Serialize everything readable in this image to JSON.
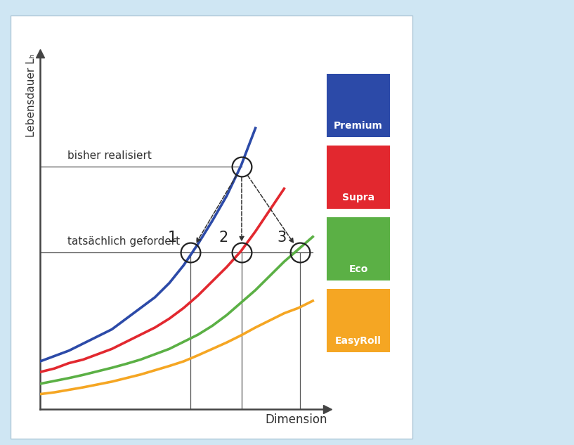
{
  "chart_data": {
    "type": "line",
    "x_label": "Dimension",
    "y_label": "Lebensdauer Lₕ",
    "x": [
      0,
      0.5,
      1,
      1.5,
      2,
      2.5,
      3,
      3.5,
      4,
      4.5,
      5,
      5.5,
      6,
      6.5,
      7,
      7.5,
      8,
      8.5,
      9,
      9.5,
      10
    ],
    "series": [
      {
        "name": "Premium",
        "color": "#2c4aa8",
        "values": [
          1.35,
          1.5,
          1.65,
          1.85,
          2.05,
          2.25,
          2.55,
          2.85,
          3.15,
          3.55,
          4.05,
          4.65,
          5.3,
          6.0,
          6.85,
          7.9,
          null,
          null,
          null,
          null,
          null
        ]
      },
      {
        "name": "Supra",
        "color": "#e2282f",
        "values": [
          1.05,
          1.15,
          1.3,
          1.4,
          1.55,
          1.7,
          1.9,
          2.1,
          2.3,
          2.55,
          2.85,
          3.2,
          3.6,
          4.0,
          4.45,
          5.0,
          5.6,
          6.2,
          null,
          null,
          null
        ]
      },
      {
        "name": "Eco",
        "color": "#5bb045",
        "values": [
          0.72,
          0.8,
          0.88,
          0.97,
          1.07,
          1.17,
          1.28,
          1.4,
          1.55,
          1.7,
          1.9,
          2.1,
          2.35,
          2.65,
          3.0,
          3.35,
          3.75,
          4.15,
          4.5,
          4.85,
          null
        ]
      },
      {
        "name": "EasyRoll",
        "color": "#f5a623",
        "values": [
          0.43,
          0.48,
          0.55,
          0.62,
          0.7,
          0.78,
          0.88,
          0.98,
          1.1,
          1.22,
          1.35,
          1.52,
          1.7,
          1.88,
          2.08,
          2.3,
          2.5,
          2.7,
          2.85,
          3.05,
          null
        ]
      }
    ],
    "reference_lines": [
      {
        "label": "bisher realisiert",
        "value": 6.82,
        "x_end": 7.02
      },
      {
        "label": "tatsächlich gefordert",
        "value": 4.41,
        "x_end": 9.5
      }
    ],
    "start_point": {
      "x": 7.02,
      "y": 6.82
    },
    "target_points": [
      {
        "label": "1",
        "x": 5.24,
        "y": 4.41
      },
      {
        "label": "2",
        "x": 7.02,
        "y": 4.41
      },
      {
        "label": "3",
        "x": 9.05,
        "y": 4.41
      }
    ],
    "xlim": [
      0,
      10
    ],
    "ylim": [
      0,
      10
    ],
    "xticks": [],
    "yticks": [],
    "tick_labels": false,
    "grid": false,
    "legend": "right"
  }
}
